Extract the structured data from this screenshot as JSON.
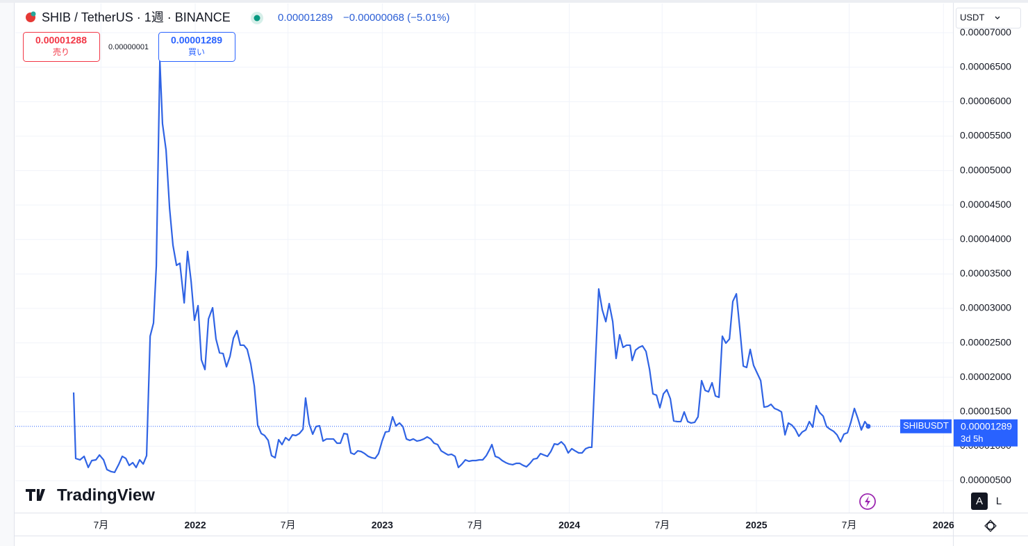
{
  "header": {
    "symbol": "SHIB / TetherUS · 1週 · BINANCE",
    "change": "−0.00000068 (−5.01%)",
    "currency": "USDT",
    "brand": "TradingView",
    "scale_auto": "A",
    "scale_log": "L"
  },
  "order_panel": {
    "sell_price": "0.00001288",
    "sell_label": "売り",
    "spread": "0.00000001",
    "buy_price": "0.00001289",
    "buy_label": "買い"
  },
  "chart_data": {
    "type": "line",
    "x": [
      2021.35,
      2021.361,
      2021.384,
      2021.406,
      2021.428,
      2021.447,
      2021.469,
      2021.488,
      2021.51,
      2021.528,
      2021.551,
      2021.569,
      2021.592,
      2021.61,
      2021.629,
      2021.647,
      2021.666,
      2021.684,
      2021.703,
      2021.722,
      2021.74,
      2021.759,
      2021.777,
      2021.792,
      2021.811,
      2021.825,
      2021.844,
      2021.863,
      2021.881,
      2021.9,
      2021.918,
      2021.941,
      2021.959,
      2021.978,
      2021.996,
      2022.015,
      2022.033,
      2022.052,
      2022.071,
      2022.093,
      2022.111,
      2022.13,
      2022.149,
      2022.167,
      2022.186,
      2022.204,
      2022.223,
      2022.241,
      2022.26,
      2022.278,
      2022.297,
      2022.316,
      2022.334,
      2022.353,
      2022.371,
      2022.39,
      2022.408,
      2022.427,
      2022.446,
      2022.464,
      2022.483,
      2022.501,
      2022.52,
      2022.538,
      2022.557,
      2022.576,
      2022.59,
      2022.609,
      2022.628,
      2022.646,
      2022.665,
      2022.683,
      2022.702,
      2022.72,
      2022.739,
      2022.758,
      2022.776,
      2022.795,
      2022.813,
      2022.832,
      2022.85,
      2022.869,
      2022.887,
      2022.906,
      2022.925,
      2022.943,
      2022.962,
      2022.98,
      2022.999,
      2023.017,
      2023.036,
      2023.055,
      2023.073,
      2023.092,
      2023.11,
      2023.129,
      2023.147,
      2023.166,
      2023.185,
      2023.203,
      2023.222,
      2023.24,
      2023.259,
      2023.277,
      2023.296,
      2023.315,
      2023.333,
      2023.352,
      2023.37,
      2023.389,
      2023.407,
      2023.426,
      2023.444,
      2023.463,
      2023.482,
      2023.5,
      2023.519,
      2023.537,
      2023.556,
      2023.574,
      2023.586,
      2023.604,
      2023.623,
      2023.641,
      2023.66,
      2023.678,
      2023.697,
      2023.716,
      2023.734,
      2023.753,
      2023.771,
      2023.79,
      2023.808,
      2023.827,
      2023.846,
      2023.864,
      2023.883,
      2023.901,
      2023.92,
      2023.938,
      2023.957,
      2023.975,
      2023.994,
      2024.013,
      2024.031,
      2024.05,
      2024.068,
      2024.087,
      2024.105,
      2024.12,
      2024.139,
      2024.157,
      2024.176,
      2024.195,
      2024.213,
      2024.232,
      2024.25,
      2024.269,
      2024.287,
      2024.306,
      2024.325,
      2024.336,
      2024.354,
      2024.373,
      2024.391,
      2024.41,
      2024.429,
      2024.447,
      2024.466,
      2024.484,
      2024.503,
      2024.521,
      2024.54,
      2024.558,
      2024.577,
      2024.596,
      2024.614,
      2024.633,
      2024.651,
      2024.67,
      2024.688,
      2024.707,
      2024.726,
      2024.744,
      2024.763,
      2024.781,
      2024.8,
      2024.818,
      2024.837,
      2024.856,
      2024.874,
      2024.893,
      2024.911,
      2024.93,
      2024.948,
      2024.967,
      2024.985,
      2025.004,
      2025.023,
      2025.041,
      2025.06,
      2025.078,
      2025.097,
      2025.115,
      2025.134,
      2025.153,
      2025.171,
      2025.19,
      2025.208,
      2025.227,
      2025.245,
      2025.264,
      2025.283,
      2025.301,
      2025.32,
      2025.338,
      2025.357,
      2025.375,
      2025.394,
      2025.413,
      2025.431,
      2025.45,
      2025.468,
      2025.487,
      2025.505,
      2025.524,
      2025.542,
      2025.561,
      2025.58,
      2025.598
    ],
    "series": [
      {
        "name": "SHIBUSDT",
        "color": "#2f63e4",
        "values": [
          1.78e-05,
          8.23e-06,
          8.02e-06,
          8.53e-06,
          6.92e-06,
          7.92e-06,
          8.02e-06,
          8.73e-06,
          8.02e-06,
          6.61e-06,
          6.31e-06,
          6.21e-06,
          7.42e-06,
          8.53e-06,
          8.23e-06,
          7.22e-06,
          7.62e-06,
          6.92e-06,
          8.02e-06,
          7.42e-06,
          8.63e-06,
          2.597e-05,
          2.788e-05,
          3.615e-05,
          6.588e-05,
          5.681e-05,
          5.298e-05,
          4.451e-05,
          3.917e-05,
          3.625e-05,
          3.655e-05,
          3.08e-05,
          3.826e-05,
          3.393e-05,
          2.828e-05,
          3.04e-05,
          2.254e-05,
          2.113e-05,
          2.849e-05,
          3.01e-05,
          2.556e-05,
          2.355e-05,
          2.345e-05,
          2.153e-05,
          2.304e-05,
          2.566e-05,
          2.677e-05,
          2.466e-05,
          2.466e-05,
          2.405e-05,
          2.193e-05,
          1.871e-05,
          1.306e-05,
          1.185e-05,
          1.155e-05,
          1.085e-05,
          8.63e-06,
          8.33e-06,
          1.095e-05,
          1.024e-05,
          1.125e-05,
          1.085e-05,
          1.165e-05,
          1.155e-05,
          1.185e-05,
          1.246e-05,
          1.7e-05,
          1.327e-05,
          1.175e-05,
          1.286e-05,
          1.296e-05,
          1.075e-05,
          1.105e-05,
          1.105e-05,
          1.105e-05,
          1.044e-05,
          1.044e-05,
          1.185e-05,
          1.175e-05,
          9.03e-06,
          8.83e-06,
          9.33e-06,
          9.23e-06,
          8.93e-06,
          8.53e-06,
          8.33e-06,
          8.23e-06,
          8.93e-06,
          1.075e-05,
          1.206e-05,
          1.216e-05,
          1.427e-05,
          1.296e-05,
          1.337e-05,
          1.286e-05,
          1.105e-05,
          1.085e-05,
          1.105e-05,
          1.075e-05,
          1.085e-05,
          1.105e-05,
          1.135e-05,
          1.105e-05,
          1.044e-05,
          1.024e-05,
          9.33e-06,
          9.03e-06,
          8.73e-06,
          8.83e-06,
          8.53e-06,
          6.92e-06,
          7.42e-06,
          8.02e-06,
          7.82e-06,
          7.92e-06,
          7.92e-06,
          8.02e-06,
          8.02e-06,
          8.63e-06,
          9.54e-06,
          1.024e-05,
          8.53e-06,
          8.33e-06,
          7.92e-06,
          7.62e-06,
          7.42e-06,
          7.32e-06,
          7.52e-06,
          7.52e-06,
          7.22e-06,
          7.02e-06,
          7.52e-06,
          8.13e-06,
          8.23e-06,
          8.93e-06,
          8.73e-06,
          8.53e-06,
          9.23e-06,
          1.034e-05,
          1.024e-05,
          1.064e-05,
          1.014e-05,
          9.03e-06,
          9.64e-06,
          9.33e-06,
          9.03e-06,
          9.03e-06,
          9.64e-06,
          9.84e-06,
          9.84e-06,
          2.183e-05,
          3.282e-05,
          2.98e-05,
          2.808e-05,
          3.07e-05,
          2.808e-05,
          2.274e-05,
          2.617e-05,
          2.435e-05,
          2.466e-05,
          2.466e-05,
          2.244e-05,
          2.395e-05,
          2.435e-05,
          2.456e-05,
          2.375e-05,
          2.113e-05,
          1.76e-05,
          1.74e-05,
          1.558e-05,
          1.76e-05,
          1.82e-05,
          1.689e-05,
          1.367e-05,
          1.357e-05,
          1.357e-05,
          1.498e-05,
          1.357e-05,
          1.337e-05,
          1.347e-05,
          1.427e-05,
          1.952e-05,
          1.81e-05,
          1.79e-05,
          1.921e-05,
          1.73e-05,
          1.71e-05,
          2.597e-05,
          2.496e-05,
          2.556e-05,
          3.101e-05,
          3.212e-05,
          2.718e-05,
          2.163e-05,
          2.143e-05,
          2.405e-05,
          2.173e-05,
          2.062e-05,
          1.952e-05,
          1.568e-05,
          1.578e-05,
          1.608e-05,
          1.548e-05,
          1.528e-05,
          1.498e-05,
          1.165e-05,
          1.337e-05,
          1.306e-05,
          1.246e-05,
          1.145e-05,
          1.206e-05,
          1.236e-05,
          1.357e-05,
          1.276e-05,
          1.589e-05,
          1.488e-05,
          1.437e-05,
          1.286e-05,
          1.246e-05,
          1.216e-05,
          1.165e-05,
          1.064e-05,
          1.175e-05,
          1.196e-05,
          1.347e-05,
          1.548e-05,
          1.407e-05,
          1.236e-05,
          1.357e-05,
          1.289e-05
        ]
      }
    ],
    "xlim": [
      2021.038,
      2026.051
    ],
    "ylim": [
      3.6e-07,
      7.425e-05
    ],
    "xticks": [
      {
        "value": 2021.496,
        "label": "7月"
      },
      2022,
      {
        "value": 2022.496,
        "label": "7月"
      },
      2023,
      {
        "value": 2023.496,
        "label": "7月"
      },
      2024,
      {
        "value": 2024.496,
        "label": "7月"
      },
      2025,
      {
        "value": 2025.496,
        "label": "7月"
      },
      2026
    ],
    "yticks": [
      {
        "value": 5e-06,
        "label": "0.00000500"
      },
      {
        "value": 1e-05,
        "label": "0.00001000"
      },
      {
        "value": 1.5e-05,
        "label": "0.00001500"
      },
      {
        "value": 2e-05,
        "label": "0.00002000"
      },
      {
        "value": 2.5e-05,
        "label": "0.00002500"
      },
      {
        "value": 3e-05,
        "label": "0.00003000"
      },
      {
        "value": 3.5e-05,
        "label": "0.00003500"
      },
      {
        "value": 4e-05,
        "label": "0.00004000"
      },
      {
        "value": 4.5e-05,
        "label": "0.00004500"
      },
      {
        "value": 5e-05,
        "label": "0.00005000"
      },
      {
        "value": 5.5e-05,
        "label": "0.00005500"
      },
      {
        "value": 6e-05,
        "label": "0.00006000"
      },
      {
        "value": 6.5e-05,
        "label": "0.00006500"
      },
      {
        "value": 7e-05,
        "label": "0.00007000"
      }
    ],
    "grid": true,
    "last_price": {
      "value": 1.289e-05,
      "label": "0.00001289"
    },
    "countdown": "3d 5h"
  }
}
